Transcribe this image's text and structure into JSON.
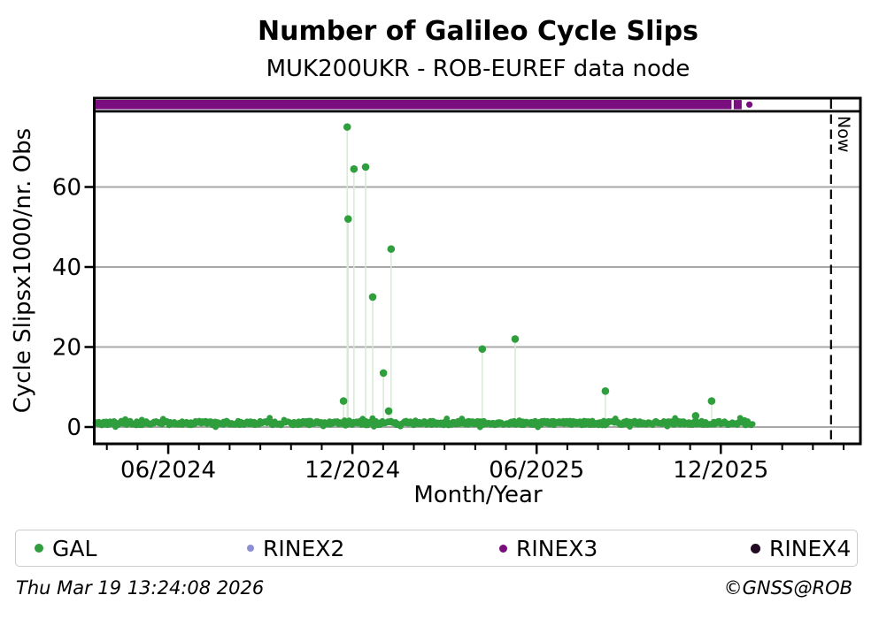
{
  "header": {
    "title": "Number of Galileo Cycle Slips",
    "subtitle": "MUK200UKR - ROB-EUREF data node"
  },
  "footer": {
    "timestamp": "Thu Mar 19 13:24:08 2026",
    "credit": "©GNSS@ROB"
  },
  "legend": {
    "items": [
      {
        "label": "GAL",
        "color": "#2f9e3d"
      },
      {
        "label": "RINEX2",
        "color": "#8d8fd3"
      },
      {
        "label": "RINEX3",
        "color": "#7a0e7e"
      },
      {
        "label": "RINEX4",
        "color": "#220a23"
      }
    ]
  },
  "chart_data": {
    "type": "scatter",
    "title": "Number of Galileo Cycle Slips",
    "subtitle": "MUK200UKR - ROB-EUREF data node",
    "xlabel": "Month/Year",
    "ylabel": "Cycle Slipsx1000/nr. Obs",
    "now_label": "Now",
    "x_axis": {
      "unit": "calendar time; m = months since 2024-04",
      "range_m": [
        -0.4,
        24.58
      ],
      "major_ticks": [
        {
          "m": 2,
          "label": "06/2024"
        },
        {
          "m": 8,
          "label": "12/2024"
        },
        {
          "m": 14,
          "label": "06/2025"
        },
        {
          "m": 20,
          "label": "12/2025"
        }
      ],
      "minor_ticks_m": {
        "from": 0,
        "to": 24,
        "step": 1
      }
    },
    "y_axis": {
      "range": [
        -4.3,
        78.6
      ],
      "ticks": [
        0,
        20,
        40,
        60
      ],
      "grid": true
    },
    "now_line": {
      "m": 23.59,
      "approx_date": "2026-03-19",
      "style": "dashed-black"
    },
    "series": [
      {
        "name": "GAL",
        "marker_color": "#2f9e3d",
        "stem_color": "#d6ead6",
        "outliers": [
          {
            "approx_date": "2024-11-21",
            "m": 7.71,
            "v": 6.5
          },
          {
            "approx_date": "2024-11-25",
            "m": 7.83,
            "v": 75
          },
          {
            "approx_date": "2024-11-26",
            "m": 7.86,
            "v": 52
          },
          {
            "approx_date": "2024-12-02",
            "m": 8.05,
            "v": 64.5
          },
          {
            "approx_date": "2024-12-13",
            "m": 8.43,
            "v": 65
          },
          {
            "approx_date": "2024-12-20",
            "m": 8.66,
            "v": 32.5
          },
          {
            "approx_date": "2025-01-01",
            "m": 9.01,
            "v": 13.5
          },
          {
            "approx_date": "2025-01-05",
            "m": 9.18,
            "v": 4
          },
          {
            "approx_date": "2025-01-08",
            "m": 9.26,
            "v": 44.5
          },
          {
            "approx_date": "2025-04-11",
            "m": 12.23,
            "v": 19.5
          },
          {
            "approx_date": "2025-05-13",
            "m": 13.3,
            "v": 22
          },
          {
            "approx_date": "2025-08-11",
            "m": 16.24,
            "v": 9
          },
          {
            "approx_date": "2025-11-09",
            "m": 19.18,
            "v": 2.8
          },
          {
            "approx_date": "2025-11-25",
            "m": 19.7,
            "v": 6.5
          }
        ],
        "baseline": {
          "note": "dense near-daily scatter of small values ~0 to 2",
          "m_from": -0.38,
          "m_to": 21.03,
          "v_center": 1.0,
          "v_spread": 1.1,
          "points_per_month": 30,
          "seed": 42
        }
      },
      {
        "name": "RINEX3",
        "color": "#7a0e7e",
        "note": "availability strip drawn in band at top of plot",
        "segments_m": [
          [
            -0.4,
            20.35
          ],
          [
            20.42,
            20.68
          ]
        ],
        "lone_points_m": [
          20.93
        ]
      },
      {
        "name": "RINEX2",
        "color": "#8d8fd3",
        "points": []
      },
      {
        "name": "RINEX4",
        "color": "#220a23",
        "points": []
      }
    ]
  }
}
